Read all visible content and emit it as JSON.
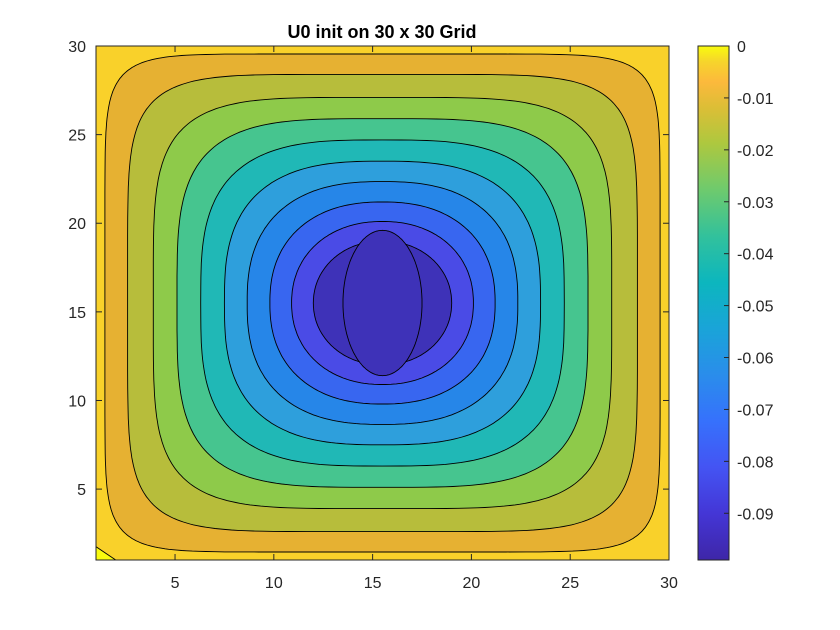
{
  "chart_data": {
    "type": "contour",
    "title": "U0 init on 30 x 30 Grid",
    "xlabel": "",
    "ylabel": "",
    "xlim": [
      1,
      30
    ],
    "ylim": [
      1,
      30
    ],
    "x_ticks": [
      "5",
      "10",
      "15",
      "20",
      "25",
      "30"
    ],
    "x_tick_values": [
      5,
      10,
      15,
      20,
      25,
      30
    ],
    "y_ticks": [
      "5",
      "10",
      "15",
      "20",
      "25",
      "30"
    ],
    "y_tick_values": [
      5,
      10,
      15,
      20,
      25,
      30
    ],
    "center": [
      15.5,
      15.5
    ],
    "min_value": -0.099,
    "max_value": 0,
    "levels": [
      0,
      -0.009,
      -0.018,
      -0.027,
      -0.036,
      -0.045,
      -0.054,
      -0.063,
      -0.072,
      -0.081,
      -0.09
    ],
    "level_colors": [
      "#F9D12A",
      "#E6B132",
      "#B7BD3B",
      "#8ECA4A",
      "#46C58F",
      "#20B8B6",
      "#2E9FDC",
      "#2686E8",
      "#3866F0",
      "#4A4BE6",
      "#3E32B8"
    ],
    "contour_radius_x": [
      14.05,
      12.9,
      11.6,
      10.4,
      9.2,
      8.0,
      6.85,
      5.7,
      4.6,
      3.5,
      2.0
    ],
    "contour_radius_y": [
      14.05,
      12.9,
      11.6,
      10.4,
      9.2,
      8.0,
      6.85,
      5.7,
      4.6,
      3.5,
      4.1
    ],
    "contour_shape_exponent": [
      9,
      6,
      4.6,
      3.8,
      3.2,
      2.8,
      2.5,
      2.3,
      2.15,
      2.05,
      2.0
    ],
    "corner_patch_level": 0,
    "colorbar": {
      "ticks": [
        "0",
        "-0.01",
        "-0.02",
        "-0.03",
        "-0.04",
        "-0.05",
        "-0.06",
        "-0.07",
        "-0.08",
        "-0.09"
      ],
      "tick_values": [
        0,
        -0.01,
        -0.02,
        -0.03,
        -0.04,
        -0.05,
        -0.06,
        -0.07,
        -0.08,
        -0.09
      ],
      "range": [
        -0.099,
        0
      ],
      "colormap": "parula",
      "location": "right"
    },
    "colors": {
      "background_fill": "#F9D12A",
      "line": "#000000",
      "corner_yellow": "#F9FB0E"
    }
  }
}
